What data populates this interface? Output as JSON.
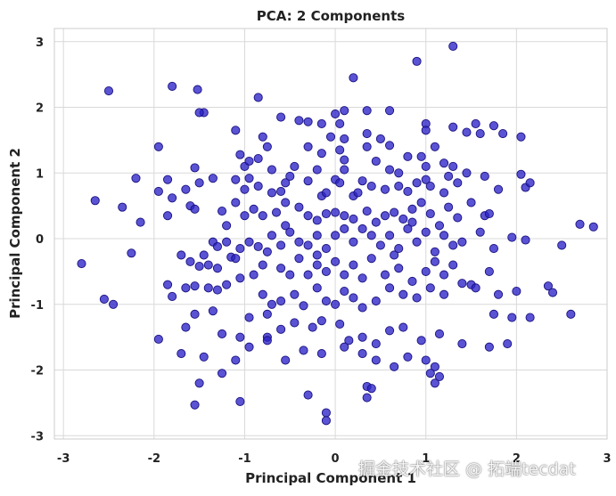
{
  "chart_data": {
    "type": "scatter",
    "title": "PCA: 2 Components",
    "xlabel": "Principal Component 1",
    "ylabel": "Principal Component 2",
    "xlim": [
      -3.1,
      3.0
    ],
    "ylim": [
      -3.05,
      3.2
    ],
    "xticks": [
      -3,
      -2,
      -1,
      0,
      1,
      2,
      3
    ],
    "yticks": [
      -3,
      -2,
      -1,
      0,
      1,
      2,
      3
    ],
    "grid": true,
    "marker_color": "#2b22c6",
    "marker_edge_color": "#1a1280",
    "points": [
      [
        1.3,
        2.93
      ],
      [
        0.9,
        2.7
      ],
      [
        0.2,
        2.45
      ],
      [
        -2.5,
        2.25
      ],
      [
        -1.8,
        2.32
      ],
      [
        -1.52,
        2.27
      ],
      [
        -0.85,
        2.15
      ],
      [
        -1.45,
        1.92
      ],
      [
        -1.5,
        1.92
      ],
      [
        -0.6,
        1.85
      ],
      [
        -0.4,
        1.8
      ],
      [
        -0.3,
        1.78
      ],
      [
        -0.15,
        1.75
      ],
      [
        0.05,
        1.75
      ],
      [
        0.35,
        1.95
      ],
      [
        0.1,
        1.95
      ],
      [
        0.0,
        1.9
      ],
      [
        0.6,
        1.95
      ],
      [
        1.0,
        1.75
      ],
      [
        1.3,
        1.7
      ],
      [
        1.55,
        1.75
      ],
      [
        1.6,
        1.6
      ],
      [
        1.45,
        1.62
      ],
      [
        1.75,
        1.72
      ],
      [
        1.85,
        1.6
      ],
      [
        2.05,
        1.55
      ],
      [
        1.0,
        1.65
      ],
      [
        -1.1,
        1.65
      ],
      [
        -0.8,
        1.55
      ],
      [
        -0.75,
        1.4
      ],
      [
        -0.3,
        1.4
      ],
      [
        -0.05,
        1.55
      ],
      [
        0.1,
        1.52
      ],
      [
        0.35,
        1.6
      ],
      [
        0.6,
        1.42
      ],
      [
        -1.95,
        1.4
      ],
      [
        -1.05,
        1.28
      ],
      [
        -1.0,
        1.1
      ],
      [
        -0.95,
        1.18
      ],
      [
        -0.85,
        1.22
      ],
      [
        -0.7,
        1.05
      ],
      [
        -0.45,
        1.1
      ],
      [
        -0.2,
        1.05
      ],
      [
        -0.15,
        1.3
      ],
      [
        0.05,
        1.35
      ],
      [
        0.1,
        1.2
      ],
      [
        0.35,
        1.4
      ],
      [
        0.45,
        1.18
      ],
      [
        0.6,
        1.05
      ],
      [
        0.7,
        1.0
      ],
      [
        0.95,
        1.25
      ],
      [
        1.1,
        1.4
      ],
      [
        1.2,
        1.15
      ],
      [
        1.3,
        1.1
      ],
      [
        1.0,
        1.1
      ],
      [
        0.8,
        1.25
      ],
      [
        0.1,
        1.05
      ],
      [
        -1.85,
        0.9
      ],
      [
        -1.65,
        0.75
      ],
      [
        -1.55,
        1.08
      ],
      [
        -1.35,
        0.92
      ],
      [
        -1.5,
        0.85
      ],
      [
        -1.1,
        0.9
      ],
      [
        -1.0,
        0.75
      ],
      [
        -0.95,
        0.92
      ],
      [
        -0.85,
        0.8
      ],
      [
        -0.7,
        0.7
      ],
      [
        -0.6,
        0.72
      ],
      [
        -0.55,
        0.85
      ],
      [
        -0.5,
        0.95
      ],
      [
        -0.3,
        0.88
      ],
      [
        -0.15,
        0.65
      ],
      [
        0.0,
        0.9
      ],
      [
        0.05,
        0.85
      ],
      [
        0.2,
        0.65
      ],
      [
        0.25,
        0.7
      ],
      [
        0.3,
        0.88
      ],
      [
        0.4,
        0.8
      ],
      [
        0.55,
        0.75
      ],
      [
        0.7,
        0.8
      ],
      [
        0.8,
        0.72
      ],
      [
        0.9,
        0.85
      ],
      [
        1.0,
        0.9
      ],
      [
        1.05,
        0.8
      ],
      [
        1.2,
        0.7
      ],
      [
        1.25,
        0.95
      ],
      [
        1.35,
        0.85
      ],
      [
        1.45,
        1.0
      ],
      [
        1.65,
        0.95
      ],
      [
        1.8,
        0.75
      ],
      [
        2.05,
        0.98
      ],
      [
        2.1,
        0.78
      ],
      [
        2.15,
        0.85
      ],
      [
        -2.65,
        0.58
      ],
      [
        -2.35,
        0.48
      ],
      [
        -2.2,
        0.92
      ],
      [
        -1.95,
        0.72
      ],
      [
        -1.8,
        0.62
      ],
      [
        -1.6,
        0.5
      ],
      [
        -1.25,
        0.42
      ],
      [
        -1.1,
        0.55
      ],
      [
        -1.0,
        0.35
      ],
      [
        -0.9,
        0.45
      ],
      [
        -0.8,
        0.35
      ],
      [
        -0.65,
        0.4
      ],
      [
        -0.55,
        0.2
      ],
      [
        -0.4,
        0.48
      ],
      [
        -0.3,
        0.35
      ],
      [
        -0.2,
        0.28
      ],
      [
        -0.1,
        0.38
      ],
      [
        0.0,
        0.4
      ],
      [
        0.1,
        0.35
      ],
      [
        0.2,
        0.3
      ],
      [
        0.35,
        0.42
      ],
      [
        0.45,
        0.25
      ],
      [
        0.55,
        0.35
      ],
      [
        0.65,
        0.4
      ],
      [
        0.75,
        0.3
      ],
      [
        0.85,
        0.45
      ],
      [
        0.95,
        0.55
      ],
      [
        1.05,
        0.38
      ],
      [
        1.15,
        0.2
      ],
      [
        1.25,
        0.48
      ],
      [
        1.35,
        0.32
      ],
      [
        1.5,
        0.55
      ],
      [
        1.65,
        0.35
      ],
      [
        1.7,
        0.38
      ],
      [
        -2.15,
        0.25
      ],
      [
        -1.85,
        0.35
      ],
      [
        -1.55,
        0.45
      ],
      [
        -2.8,
        -0.38
      ],
      [
        -2.55,
        -0.92
      ],
      [
        -2.45,
        -1.0
      ],
      [
        -2.25,
        -0.22
      ],
      [
        -1.5,
        -0.42
      ],
      [
        -1.45,
        -0.25
      ],
      [
        -1.35,
        -0.05
      ],
      [
        -1.3,
        -0.12
      ],
      [
        -1.2,
        -0.05
      ],
      [
        -1.15,
        -0.28
      ],
      [
        -1.05,
        -0.15
      ],
      [
        -0.95,
        -0.05
      ],
      [
        -0.85,
        -0.12
      ],
      [
        -0.75,
        -0.2
      ],
      [
        -0.7,
        0.05
      ],
      [
        -0.6,
        -0.1
      ],
      [
        -0.5,
        0.1
      ],
      [
        -0.4,
        -0.05
      ],
      [
        -0.3,
        -0.1
      ],
      [
        -0.2,
        0.05
      ],
      [
        -0.1,
        -0.15
      ],
      [
        0.0,
        0.05
      ],
      [
        0.1,
        0.15
      ],
      [
        0.2,
        -0.05
      ],
      [
        0.3,
        0.15
      ],
      [
        0.4,
        0.05
      ],
      [
        0.5,
        -0.1
      ],
      [
        0.6,
        0.05
      ],
      [
        0.7,
        -0.15
      ],
      [
        0.8,
        0.15
      ],
      [
        0.9,
        -0.05
      ],
      [
        1.0,
        0.1
      ],
      [
        1.1,
        -0.2
      ],
      [
        1.2,
        0.05
      ],
      [
        1.3,
        -0.1
      ],
      [
        1.4,
        -0.05
      ],
      [
        1.6,
        0.1
      ],
      [
        1.75,
        -0.15
      ],
      [
        1.95,
        0.02
      ],
      [
        2.1,
        -0.02
      ],
      [
        2.5,
        -0.1
      ],
      [
        2.7,
        0.22
      ],
      [
        2.85,
        0.18
      ],
      [
        -1.7,
        -0.25
      ],
      [
        -1.6,
        -0.35
      ],
      [
        -1.4,
        -0.4
      ],
      [
        -1.3,
        -0.45
      ],
      [
        -1.1,
        -0.3
      ],
      [
        -0.9,
        -0.55
      ],
      [
        -0.8,
        -0.4
      ],
      [
        -0.6,
        -0.45
      ],
      [
        -0.5,
        -0.55
      ],
      [
        -0.4,
        -0.3
      ],
      [
        -0.3,
        -0.55
      ],
      [
        -0.2,
        -0.4
      ],
      [
        -0.1,
        -0.5
      ],
      [
        0.0,
        -0.35
      ],
      [
        0.1,
        -0.55
      ],
      [
        0.2,
        -0.4
      ],
      [
        0.3,
        -0.6
      ],
      [
        0.4,
        -0.3
      ],
      [
        0.55,
        -0.55
      ],
      [
        0.7,
        -0.45
      ],
      [
        0.85,
        -0.65
      ],
      [
        1.0,
        -0.5
      ],
      [
        1.1,
        -0.35
      ],
      [
        1.2,
        -0.55
      ],
      [
        1.3,
        -0.4
      ],
      [
        1.5,
        -0.7
      ],
      [
        1.7,
        -0.5
      ],
      [
        1.8,
        -0.85
      ],
      [
        2.0,
        -0.8
      ],
      [
        2.35,
        -0.72
      ],
      [
        2.4,
        -0.82
      ],
      [
        -1.85,
        -0.7
      ],
      [
        -1.8,
        -0.88
      ],
      [
        -1.65,
        -0.75
      ],
      [
        -1.55,
        -0.72
      ],
      [
        -1.4,
        -0.75
      ],
      [
        -1.3,
        -0.78
      ],
      [
        -1.2,
        -0.7
      ],
      [
        -1.05,
        -0.6
      ],
      [
        -0.8,
        -0.85
      ],
      [
        -0.7,
        -1.0
      ],
      [
        -0.6,
        -0.95
      ],
      [
        -0.45,
        -0.85
      ],
      [
        -0.35,
        -1.02
      ],
      [
        -0.2,
        -0.75
      ],
      [
        -0.1,
        -0.95
      ],
      [
        0.0,
        -1.0
      ],
      [
        0.1,
        -0.8
      ],
      [
        0.2,
        -0.9
      ],
      [
        0.3,
        -1.05
      ],
      [
        0.45,
        -0.95
      ],
      [
        0.6,
        -0.75
      ],
      [
        0.75,
        -0.85
      ],
      [
        0.9,
        -0.9
      ],
      [
        1.05,
        -0.75
      ],
      [
        1.2,
        -0.85
      ],
      [
        1.4,
        -0.68
      ],
      [
        1.55,
        -0.75
      ],
      [
        -1.55,
        -1.15
      ],
      [
        -1.35,
        -1.1
      ],
      [
        -1.65,
        -1.35
      ],
      [
        -1.95,
        -1.53
      ],
      [
        -0.95,
        -1.2
      ],
      [
        -0.75,
        -1.5
      ],
      [
        -0.6,
        -1.38
      ],
      [
        -0.45,
        -1.28
      ],
      [
        -0.25,
        -1.35
      ],
      [
        -0.15,
        -1.25
      ],
      [
        0.05,
        -1.3
      ],
      [
        0.15,
        -1.55
      ],
      [
        0.3,
        -1.5
      ],
      [
        0.45,
        -1.6
      ],
      [
        0.6,
        -1.4
      ],
      [
        0.75,
        -1.35
      ],
      [
        0.95,
        -1.55
      ],
      [
        1.15,
        -1.45
      ],
      [
        1.4,
        -1.6
      ],
      [
        1.7,
        -1.65
      ],
      [
        1.9,
        -1.6
      ],
      [
        2.6,
        -1.15
      ],
      [
        1.95,
        -1.2
      ],
      [
        2.15,
        -1.2
      ],
      [
        1.75,
        -1.15
      ],
      [
        -1.25,
        -1.45
      ],
      [
        -1.05,
        -1.5
      ],
      [
        -0.75,
        -1.55
      ],
      [
        -1.7,
        -1.75
      ],
      [
        -1.45,
        -1.8
      ],
      [
        -1.1,
        -1.85
      ],
      [
        -0.95,
        -1.65
      ],
      [
        -0.55,
        -1.85
      ],
      [
        -0.35,
        -1.7
      ],
      [
        -0.15,
        -1.75
      ],
      [
        0.1,
        -1.65
      ],
      [
        0.3,
        -1.75
      ],
      [
        0.45,
        -1.85
      ],
      [
        0.65,
        -1.95
      ],
      [
        0.8,
        -1.8
      ],
      [
        1.0,
        -1.85
      ],
      [
        1.1,
        -1.95
      ],
      [
        1.15,
        -2.1
      ],
      [
        -1.25,
        -2.05
      ],
      [
        -1.5,
        -2.2
      ],
      [
        -1.05,
        -2.48
      ],
      [
        -0.3,
        -2.38
      ],
      [
        -1.55,
        -2.53
      ],
      [
        -0.1,
        -2.65
      ],
      [
        -0.1,
        -2.77
      ],
      [
        0.35,
        -2.25
      ],
      [
        0.4,
        -2.28
      ],
      [
        0.35,
        -2.42
      ],
      [
        1.1,
        -2.2
      ],
      [
        1.05,
        -2.05
      ],
      [
        -0.75,
        -1.15
      ],
      [
        -0.2,
        -0.25
      ],
      [
        0.65,
        -0.25
      ],
      [
        0.85,
        0.25
      ],
      [
        -1.2,
        0.2
      ],
      [
        -0.1,
        0.7
      ],
      [
        0.5,
        1.52
      ],
      [
        -0.55,
        0.55
      ]
    ]
  },
  "watermark": "掘金技术社区 @ 拓端tecdat"
}
